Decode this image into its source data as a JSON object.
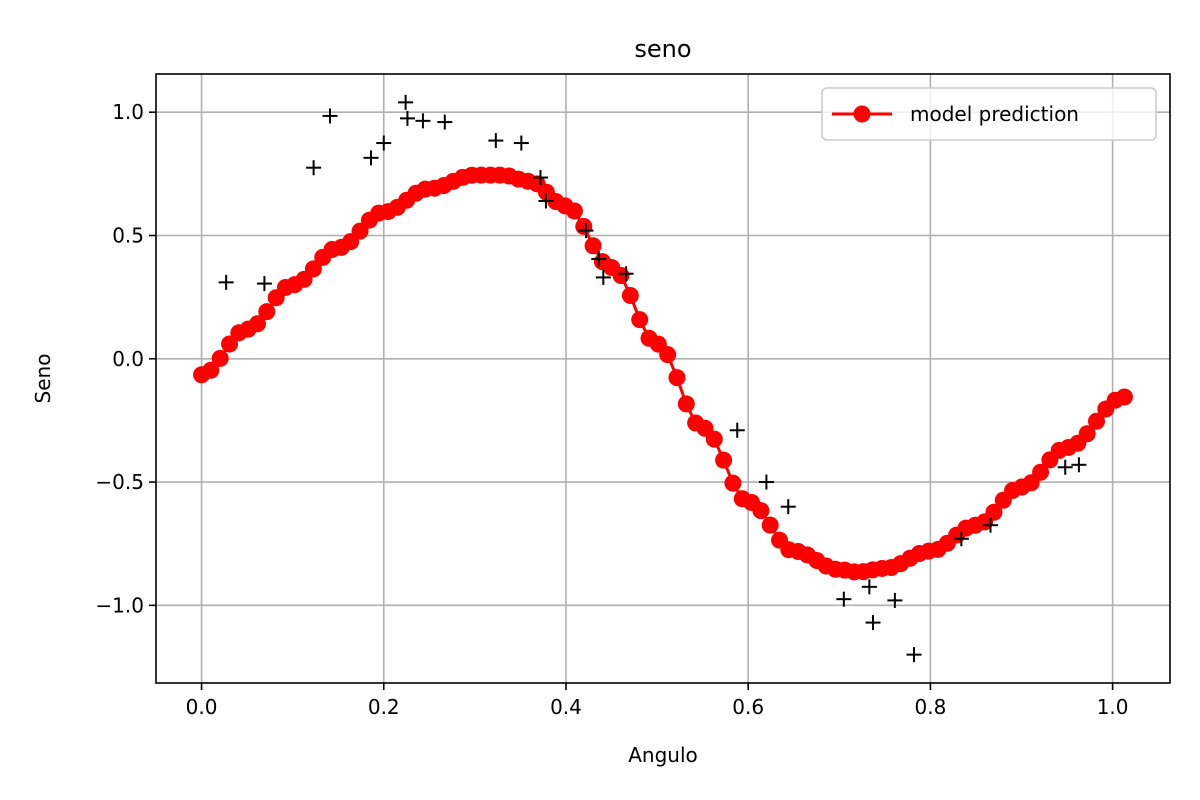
{
  "chart_data": {
    "type": "scatter",
    "title": "seno",
    "xlabel": "Angulo",
    "ylabel": "Seno",
    "xlim": [
      -0.05,
      1.063
    ],
    "ylim": [
      -1.315,
      1.155
    ],
    "xticks": [
      0.0,
      0.2,
      0.4,
      0.6,
      0.8,
      1.0
    ],
    "xtick_labels": [
      "0.0",
      "0.2",
      "0.4",
      "0.6",
      "0.8",
      "1.0"
    ],
    "yticks": [
      -1.0,
      -0.5,
      0.0,
      0.5,
      1.0
    ],
    "ytick_labels": [
      "−1.0",
      "−0.5",
      "0.0",
      "0.5",
      "1.0"
    ],
    "grid": true,
    "legend": {
      "position": "top-right",
      "entries": [
        "model prediction"
      ]
    },
    "series": [
      {
        "name": "model prediction",
        "style": "line-marker",
        "color": "#ff0000",
        "curve": {
          "x_start": 0.0,
          "x_end": 1.013,
          "count": 100,
          "keypoints": [
            [
              0.0,
              -0.065
            ],
            [
              0.05,
              0.12
            ],
            [
              0.1,
              0.3
            ],
            [
              0.15,
              0.45
            ],
            [
              0.2,
              0.595
            ],
            [
              0.25,
              0.69
            ],
            [
              0.3,
              0.745
            ],
            [
              0.33,
              0.745
            ],
            [
              0.36,
              0.72
            ],
            [
              0.4,
              0.62
            ],
            [
              0.45,
              0.37
            ],
            [
              0.5,
              0.06
            ],
            [
              0.55,
              -0.28
            ],
            [
              0.6,
              -0.58
            ],
            [
              0.65,
              -0.78
            ],
            [
              0.7,
              -0.855
            ],
            [
              0.72,
              -0.865
            ],
            [
              0.75,
              -0.85
            ],
            [
              0.8,
              -0.78
            ],
            [
              0.85,
              -0.675
            ],
            [
              0.9,
              -0.52
            ],
            [
              0.95,
              -0.36
            ],
            [
              1.013,
              -0.155
            ]
          ]
        }
      },
      {
        "name": "",
        "style": "plus-marker",
        "color": "#000000",
        "points": [
          [
            0.027,
            0.31
          ],
          [
            0.069,
            0.305
          ],
          [
            0.123,
            0.775
          ],
          [
            0.141,
            0.985
          ],
          [
            0.186,
            0.815
          ],
          [
            0.2,
            0.875
          ],
          [
            0.224,
            1.04
          ],
          [
            0.226,
            0.975
          ],
          [
            0.243,
            0.965
          ],
          [
            0.267,
            0.96
          ],
          [
            0.323,
            0.885
          ],
          [
            0.351,
            0.875
          ],
          [
            0.372,
            0.735
          ],
          [
            0.378,
            0.64
          ],
          [
            0.422,
            0.52
          ],
          [
            0.436,
            0.405
          ],
          [
            0.441,
            0.33
          ],
          [
            0.466,
            0.345
          ],
          [
            0.588,
            -0.29
          ],
          [
            0.62,
            -0.5
          ],
          [
            0.644,
            -0.6
          ],
          [
            0.705,
            -0.975
          ],
          [
            0.733,
            -0.925
          ],
          [
            0.737,
            -1.07
          ],
          [
            0.761,
            -0.98
          ],
          [
            0.782,
            -1.2
          ],
          [
            0.834,
            -0.73
          ],
          [
            0.866,
            -0.675
          ],
          [
            0.948,
            -0.44
          ],
          [
            0.963,
            -0.43
          ]
        ]
      }
    ]
  }
}
